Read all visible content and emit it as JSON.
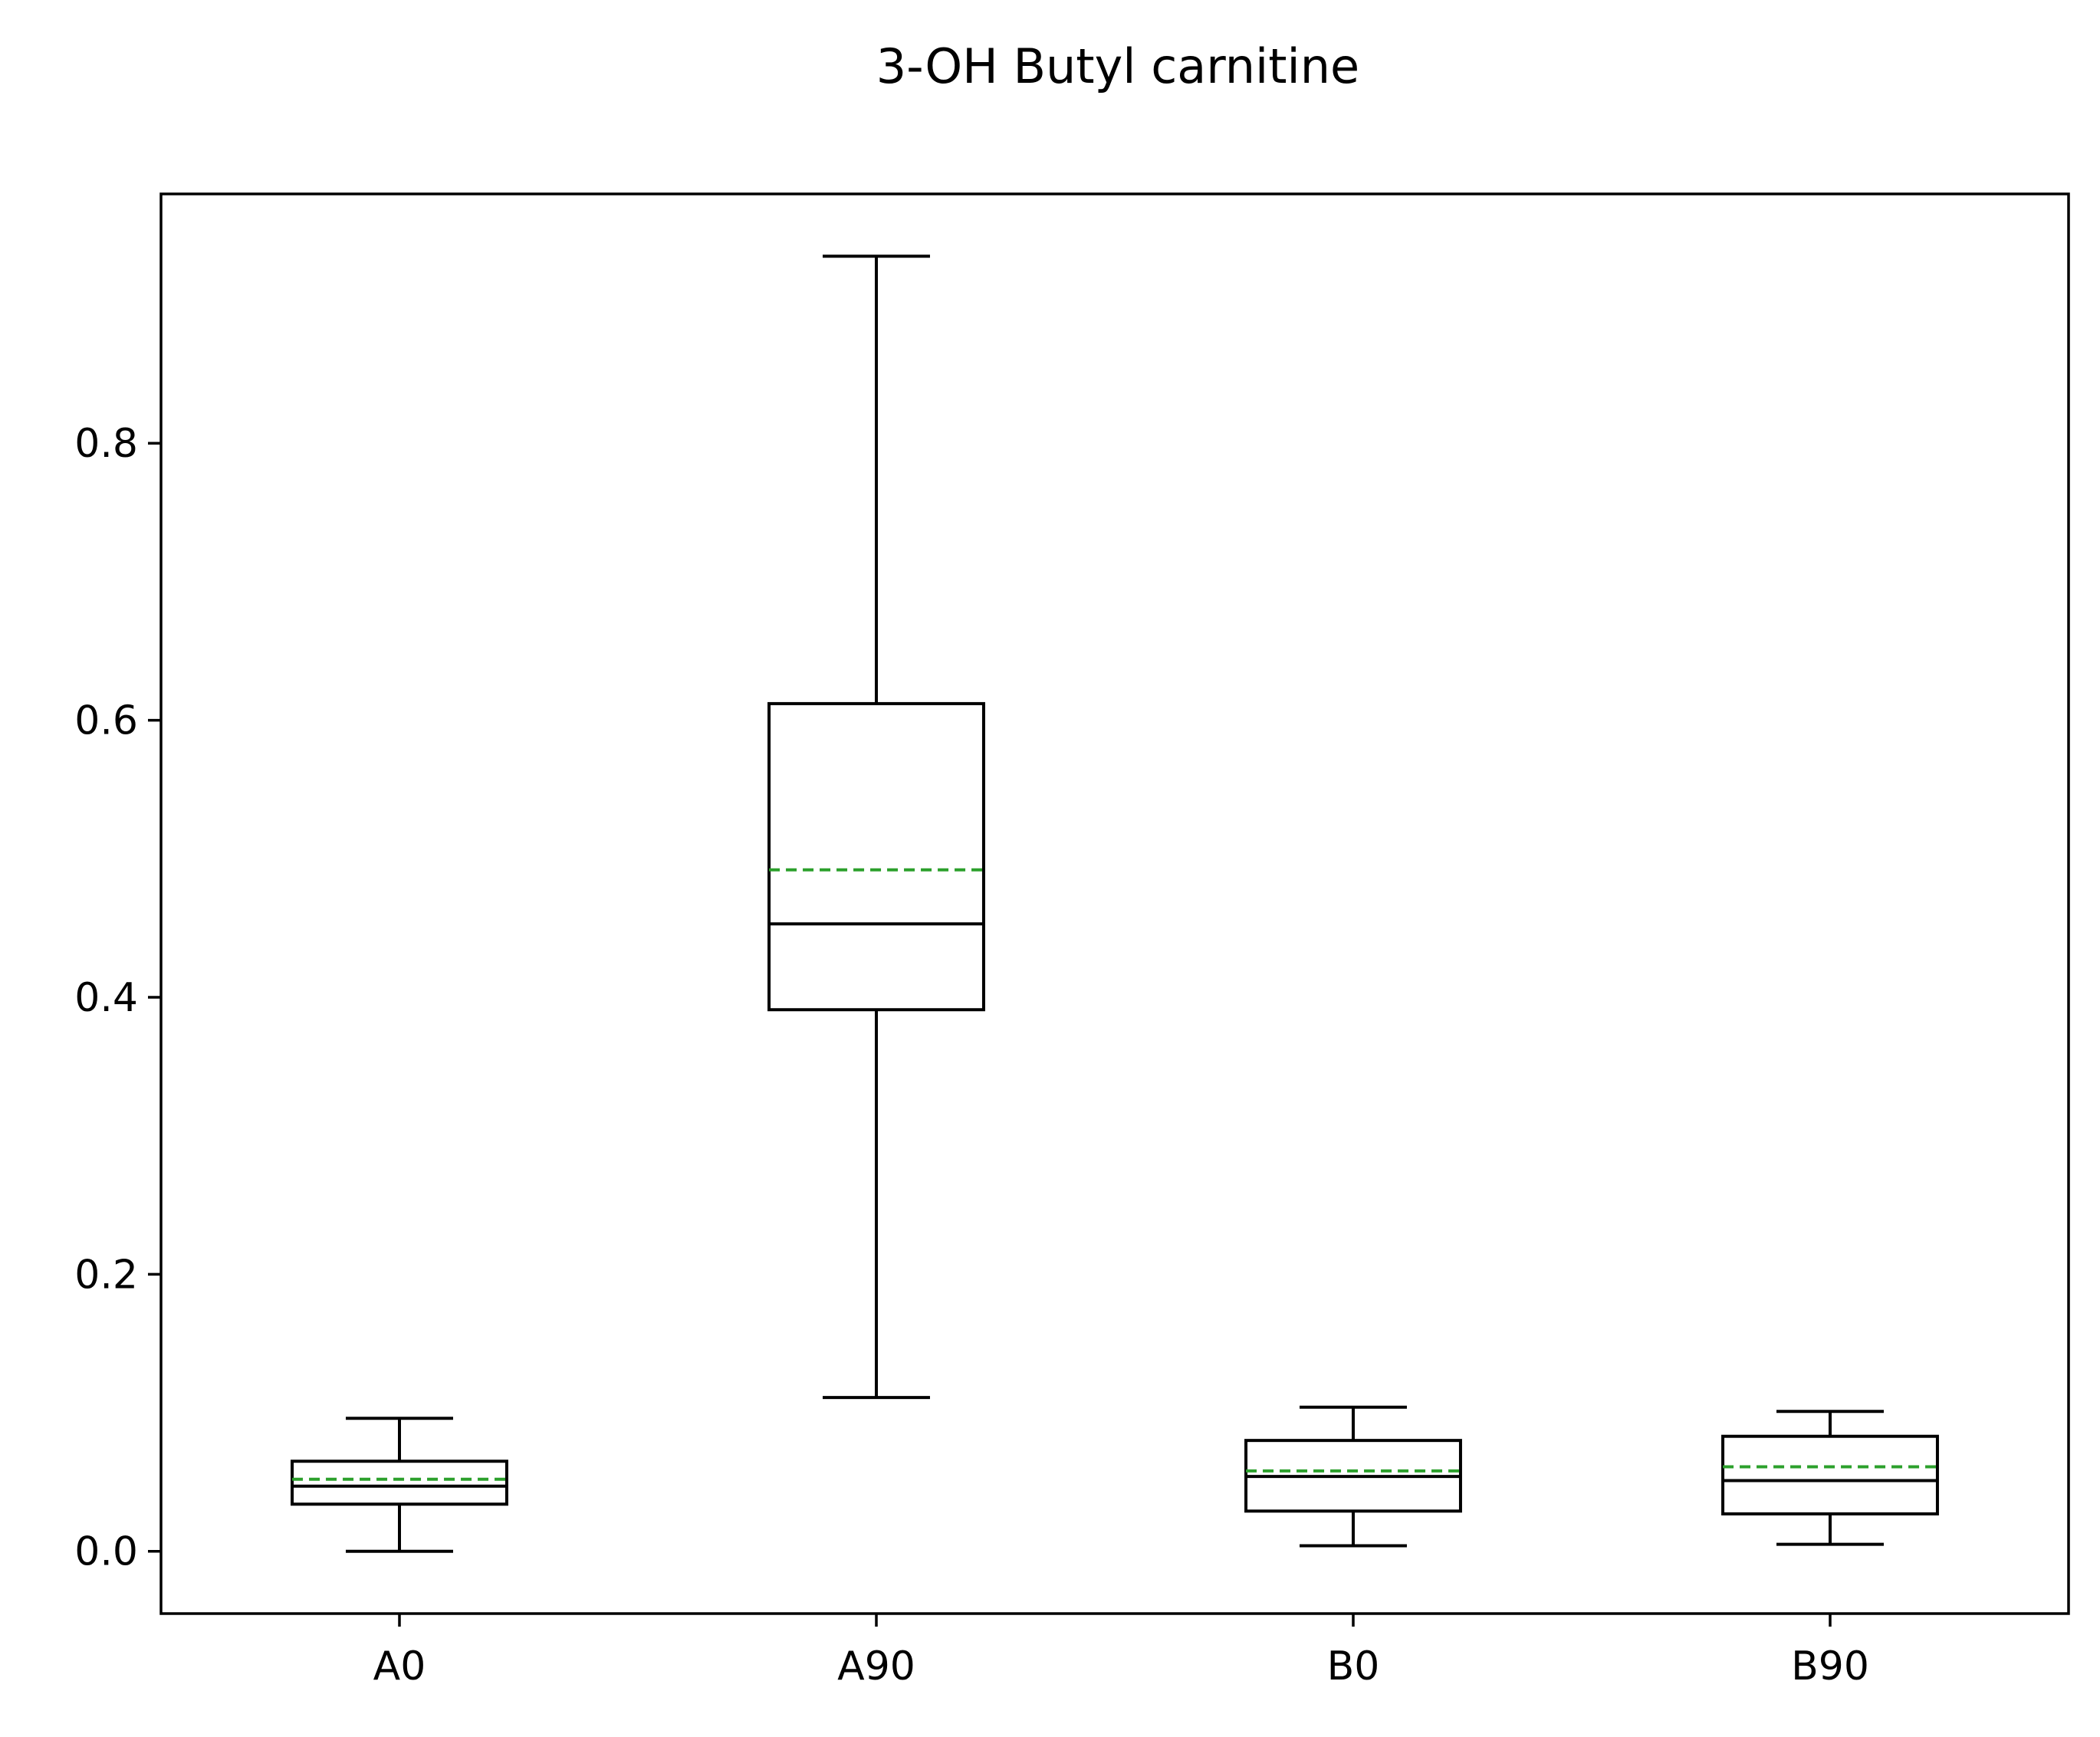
{
  "chart_data": {
    "type": "box",
    "title": "3-OH Butyl carnitine",
    "xlabel": "",
    "ylabel": "",
    "categories": [
      "A0",
      "A90",
      "B0",
      "B90"
    ],
    "ylim": [
      -0.045,
      0.98
    ],
    "y_ticks": [
      0.0,
      0.2,
      0.4,
      0.6,
      0.8
    ],
    "y_tick_labels": [
      "0.0",
      "0.2",
      "0.4",
      "0.6",
      "0.8"
    ],
    "grid": false,
    "legend": "none",
    "show_mean_line": true,
    "boxes": [
      {
        "category": "A0",
        "whisker_low": 0.0,
        "q1": 0.034,
        "median": 0.047,
        "mean": 0.052,
        "q3": 0.065,
        "whisker_high": 0.096
      },
      {
        "category": "A90",
        "whisker_low": 0.111,
        "q1": 0.391,
        "median": 0.453,
        "mean": 0.492,
        "q3": 0.612,
        "whisker_high": 0.935
      },
      {
        "category": "B0",
        "whisker_low": 0.004,
        "q1": 0.029,
        "median": 0.054,
        "mean": 0.058,
        "q3": 0.08,
        "whisker_high": 0.104
      },
      {
        "category": "B90",
        "whisker_low": 0.005,
        "q1": 0.027,
        "median": 0.051,
        "mean": 0.061,
        "q3": 0.083,
        "whisker_high": 0.101
      }
    ],
    "colors": {
      "box": "#000000",
      "median": "#000000",
      "mean": "#2ca02c",
      "axes": "#000000",
      "background": "#ffffff"
    }
  }
}
